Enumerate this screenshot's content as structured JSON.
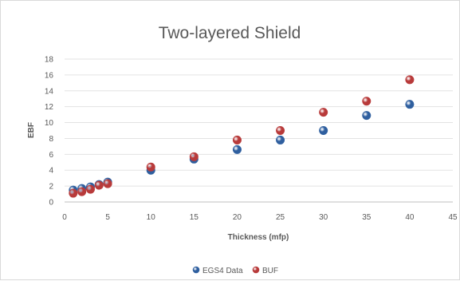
{
  "chart_data": {
    "type": "scatter",
    "title": "Two-layered Shield",
    "xlabel": "Thickness (mfp)",
    "ylabel": "EBF",
    "xlim": [
      0,
      45
    ],
    "ylim": [
      0,
      18
    ],
    "xticks": [
      0,
      5,
      10,
      15,
      20,
      25,
      30,
      35,
      40,
      45
    ],
    "yticks": [
      0,
      2,
      4,
      6,
      8,
      10,
      12,
      14,
      16,
      18
    ],
    "grid": true,
    "legend_position": "bottom",
    "series": [
      {
        "name": "EGS4 Data",
        "color": "#2f5f9f",
        "x": [
          1,
          2,
          3,
          4,
          5,
          10,
          15,
          20,
          25,
          30,
          35,
          40
        ],
        "y": [
          1.5,
          1.7,
          1.9,
          2.2,
          2.5,
          4.0,
          5.4,
          6.6,
          7.8,
          9.0,
          10.9,
          12.3
        ]
      },
      {
        "name": "BUF",
        "color": "#b83a3a",
        "x": [
          1,
          2,
          3,
          4,
          5,
          10,
          15,
          20,
          25,
          30,
          35,
          40
        ],
        "y": [
          1.1,
          1.3,
          1.6,
          2.1,
          2.3,
          4.4,
          5.7,
          7.8,
          9.0,
          11.3,
          12.7,
          15.4
        ]
      }
    ]
  }
}
